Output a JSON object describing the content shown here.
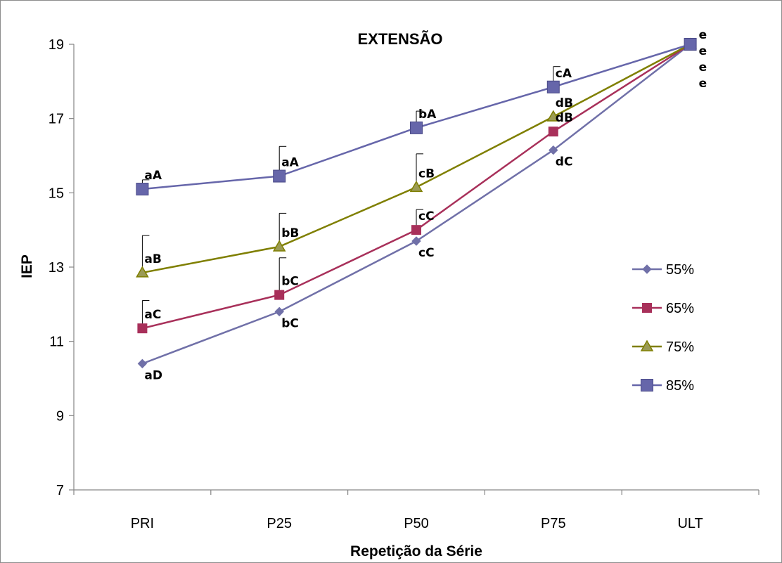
{
  "chart_data": {
    "type": "line",
    "title": "EXTENSÃO",
    "xlabel": "Repetição da Série",
    "ylabel": "IEP",
    "categories": [
      "PRI",
      "P25",
      "P50",
      "P75",
      "ULT"
    ],
    "yticks": [
      "7",
      "9",
      "11",
      "13",
      "15",
      "17",
      "19"
    ],
    "ylim": [
      7,
      19
    ],
    "grid": false,
    "legend_position": "right",
    "series": [
      {
        "name": "55%",
        "color": "#7070a8",
        "marker": "diamond",
        "values": [
          10.4,
          11.8,
          13.7,
          16.15,
          19.0
        ],
        "labels": [
          "aD",
          "bC",
          "cC",
          "dC",
          "e"
        ],
        "errors": [
          null,
          null,
          null,
          null,
          null
        ]
      },
      {
        "name": "65%",
        "color": "#a8305a",
        "marker": "square",
        "values": [
          11.35,
          12.25,
          14.0,
          16.65,
          19.0
        ],
        "labels": [
          "aC",
          "bC",
          "cC",
          "dB",
          "e"
        ],
        "errors": [
          12.1,
          13.25,
          14.55,
          null,
          null
        ]
      },
      {
        "name": "75%",
        "color": "#7f7f00",
        "marker": "triangle",
        "values": [
          12.85,
          13.55,
          15.15,
          17.05,
          19.0
        ],
        "labels": [
          "aB",
          "bB",
          "cB",
          "dB",
          "e"
        ],
        "errors": [
          13.85,
          14.45,
          16.05,
          null,
          null
        ]
      },
      {
        "name": "85%",
        "color": "#6666aa",
        "marker": "bigsquare",
        "values": [
          15.1,
          15.45,
          16.75,
          17.85,
          19.0
        ],
        "labels": [
          "aA",
          "aA",
          "bA",
          "cA",
          "e"
        ],
        "errors": [
          15.35,
          16.25,
          17.2,
          18.4,
          null
        ]
      }
    ]
  }
}
